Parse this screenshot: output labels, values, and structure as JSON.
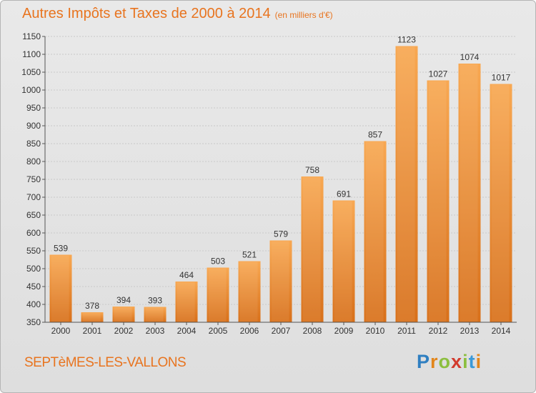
{
  "title": "Autres Impôts et Taxes de 2000 à 2014",
  "unit_note": "(en milliers d'€)",
  "commune": "SEPTèMES-LES-VALLONS",
  "logo_text": "Proxiti",
  "colors": {
    "bar": "#f0963c",
    "bar_dark": "#d86e14",
    "title": "#e8741f",
    "grid": "#c9c9c9"
  },
  "chart_data": {
    "type": "bar",
    "title": "Autres Impôts et Taxes de 2000 à 2014",
    "subtitle": "(en milliers d'€)",
    "categories": [
      "2000",
      "2001",
      "2002",
      "2003",
      "2004",
      "2005",
      "2006",
      "2007",
      "2008",
      "2009",
      "2010",
      "2011",
      "2012",
      "2013",
      "2014"
    ],
    "values": [
      539,
      378,
      394,
      393,
      464,
      503,
      521,
      579,
      758,
      691,
      857,
      1123,
      1027,
      1074,
      1017
    ],
    "ylim": [
      350,
      1150
    ],
    "yticks": [
      350,
      400,
      450,
      500,
      550,
      600,
      650,
      700,
      750,
      800,
      850,
      900,
      950,
      1000,
      1050,
      1100,
      1150
    ],
    "grid": true
  }
}
